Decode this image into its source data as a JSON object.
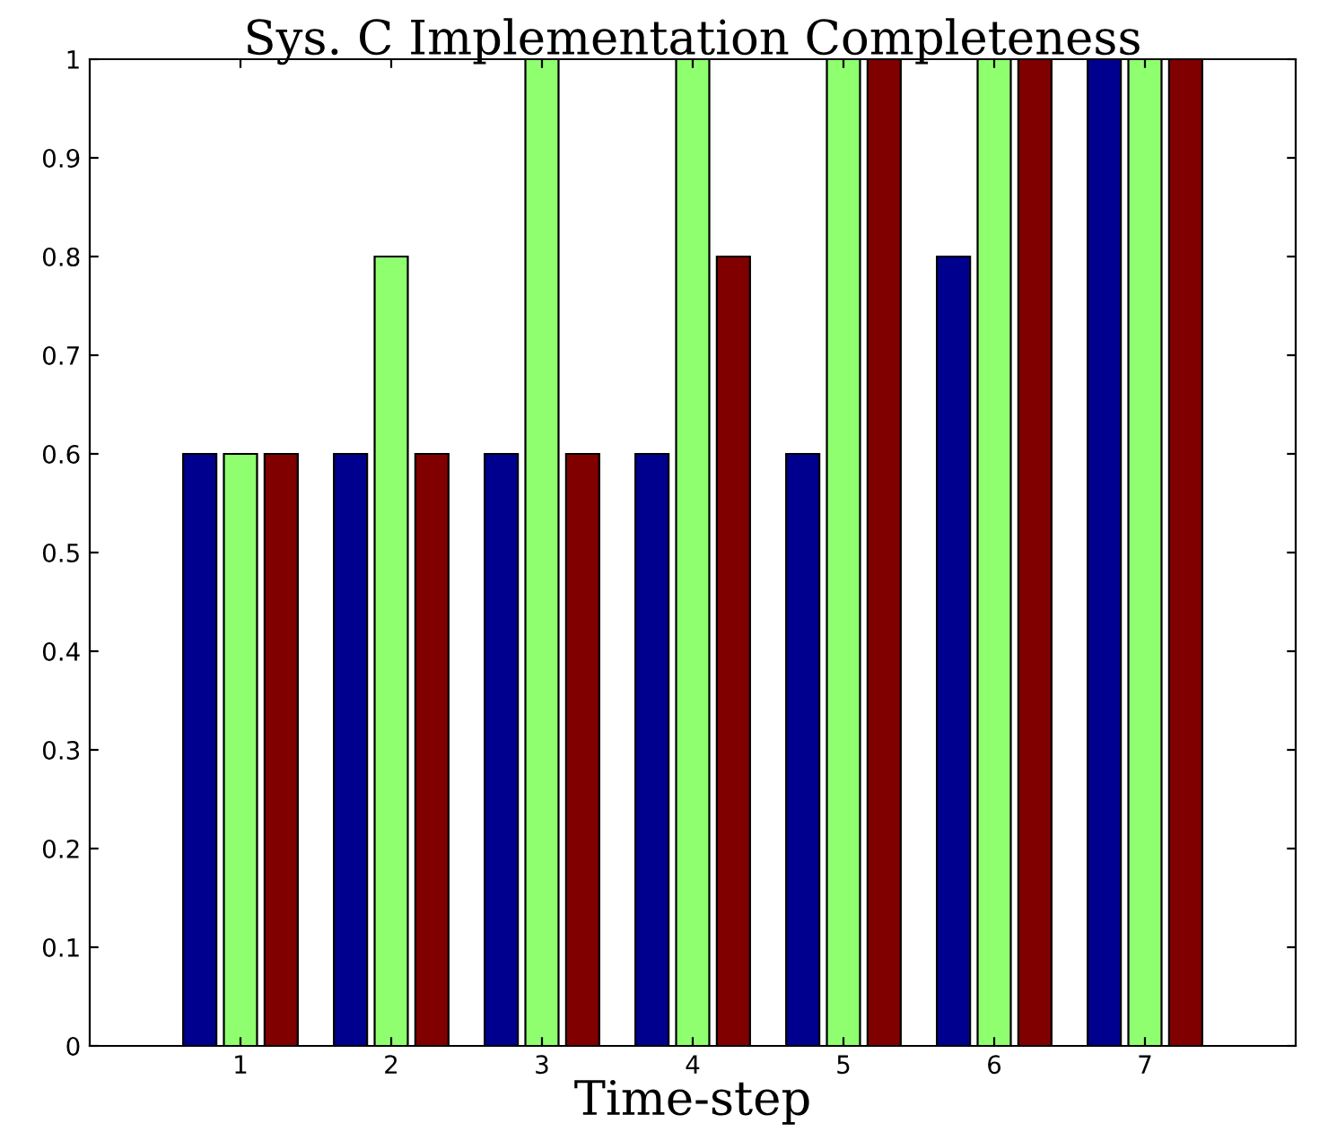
{
  "chart_data": {
    "type": "bar",
    "title": "Sys. C Implementation Completeness",
    "xlabel": "Time-step",
    "categories": [
      "1",
      "2",
      "3",
      "4",
      "5",
      "6",
      "7"
    ],
    "series": [
      {
        "color": "#00008f",
        "values": [
          0.6,
          0.6,
          0.6,
          0.6,
          0.6,
          0.8,
          1
        ]
      },
      {
        "color": "#8fff70",
        "values": [
          0.6,
          0.8,
          1,
          1,
          1,
          1,
          1
        ]
      },
      {
        "color": "#800000",
        "values": [
          0.6,
          0.6,
          0.6,
          0.8,
          1,
          1,
          1
        ]
      }
    ],
    "ylim": [
      0,
      1
    ],
    "yticks": [
      0,
      0.1,
      0.2,
      0.3,
      0.4,
      0.5,
      0.6,
      0.7,
      0.8,
      0.9,
      1
    ],
    "grid": false,
    "legend": false
  }
}
